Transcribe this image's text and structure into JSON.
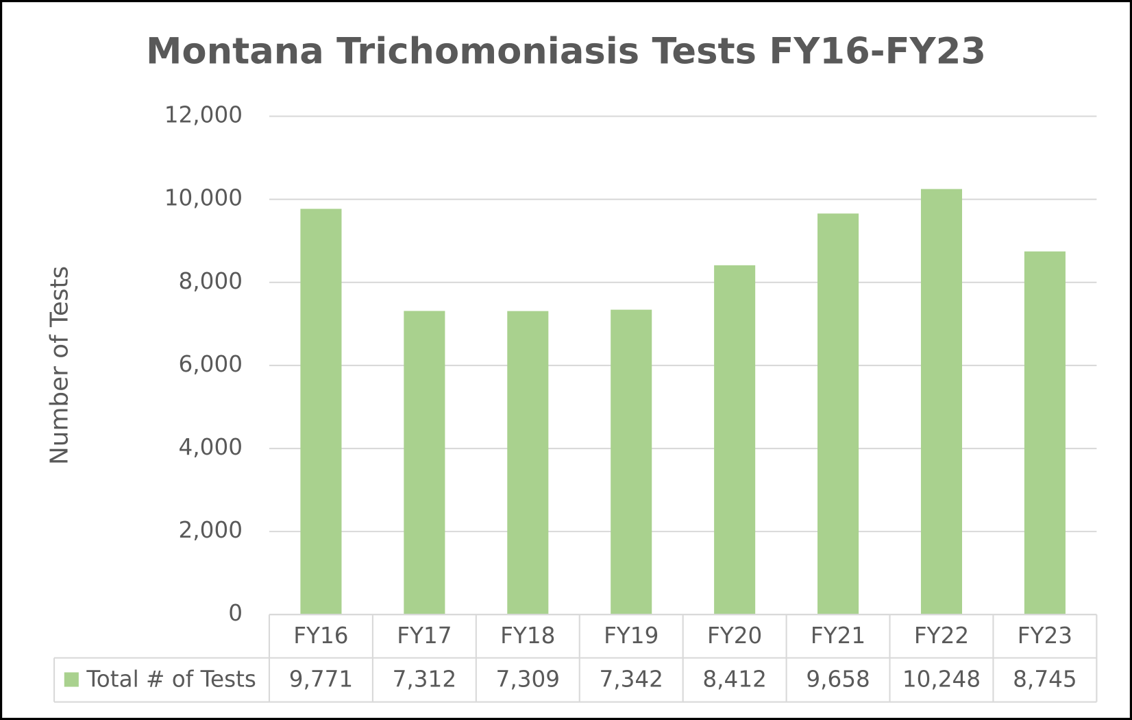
{
  "chart_data": {
    "type": "bar",
    "title": "Montana Trichomoniasis Tests FY16-FY23",
    "y_label": "Number of Tests",
    "categories": [
      "FY16",
      "FY17",
      "FY18",
      "FY19",
      "FY20",
      "FY21",
      "FY22",
      "FY23"
    ],
    "series": [
      {
        "name": "Total # of Tests",
        "color": "#a9d18e",
        "values": [
          9771,
          7312,
          7309,
          7342,
          8412,
          9658,
          10248,
          8745
        ],
        "value_labels": [
          "9,771",
          "7,312",
          "7,309",
          "7,342",
          "8,412",
          "9,658",
          "10,248",
          "8,745"
        ]
      }
    ],
    "ylim": [
      0,
      12000
    ],
    "yticks": [
      0,
      {
        "value": 2000,
        "label": "2,000"
      },
      {
        "value": 4000,
        "label": "4,000"
      },
      {
        "value": 6000,
        "label": "6,000"
      },
      {
        "value": 8000,
        "label": "8,000"
      },
      {
        "value": 10000,
        "label": "10,000"
      },
      {
        "value": 12000,
        "label": "12,000"
      }
    ],
    "grid": true,
    "data_table": true
  }
}
